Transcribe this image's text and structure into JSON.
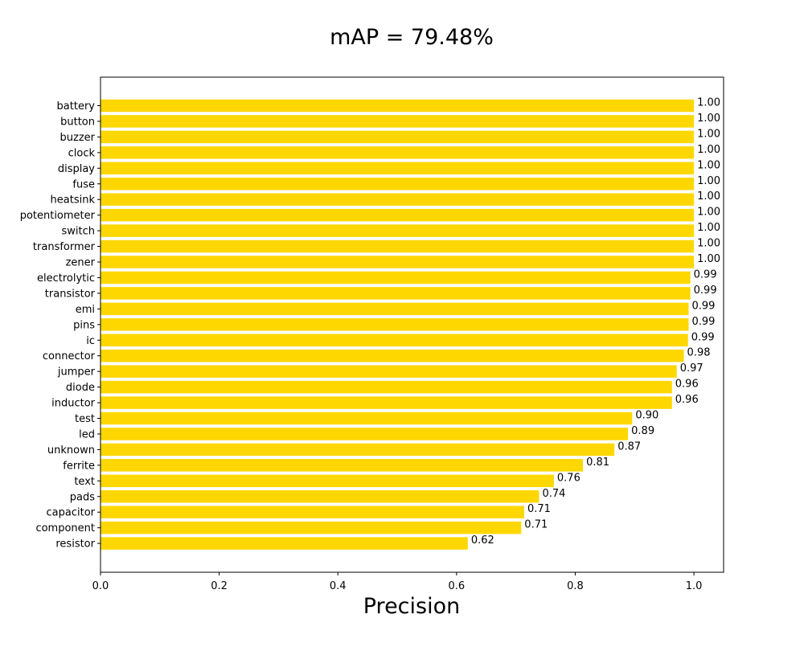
{
  "chart_data": {
    "type": "bar",
    "orientation": "horizontal",
    "title": "mAP = 79.48%",
    "xlabel": "Precision",
    "ylabel": "",
    "xlim": [
      0,
      1.05
    ],
    "x_ticks": [
      "0.0",
      "0.2",
      "0.4",
      "0.6",
      "0.8",
      "1.0"
    ],
    "grid": false,
    "legend": "none",
    "bar_color": "#FFD700",
    "categories": [
      "battery",
      "button",
      "buzzer",
      "clock",
      "display",
      "fuse",
      "heatsink",
      "potentiometer",
      "switch",
      "transformer",
      "zener",
      "electrolytic",
      "transistor",
      "emi",
      "pins",
      "ic",
      "connector",
      "jumper",
      "diode",
      "inductor",
      "test",
      "led",
      "unknown",
      "ferrite",
      "text",
      "pads",
      "capacitor",
      "component",
      "resistor"
    ],
    "values": [
      1.0,
      1.0,
      1.0,
      1.0,
      1.0,
      1.0,
      1.0,
      1.0,
      1.0,
      1.0,
      1.0,
      0.994,
      0.994,
      0.991,
      0.991,
      0.99,
      0.983,
      0.971,
      0.963,
      0.963,
      0.896,
      0.889,
      0.866,
      0.813,
      0.764,
      0.739,
      0.714,
      0.709,
      0.619
    ],
    "data_labels": [
      "1.00",
      "1.00",
      "1.00",
      "1.00",
      "1.00",
      "1.00",
      "1.00",
      "1.00",
      "1.00",
      "1.00",
      "1.00",
      "0.99",
      "0.99",
      "0.99",
      "0.99",
      "0.99",
      "0.98",
      "0.97",
      "0.96",
      "0.96",
      "0.90",
      "0.89",
      "0.87",
      "0.81",
      "0.76",
      "0.74",
      "0.71",
      "0.71",
      "0.62"
    ]
  }
}
